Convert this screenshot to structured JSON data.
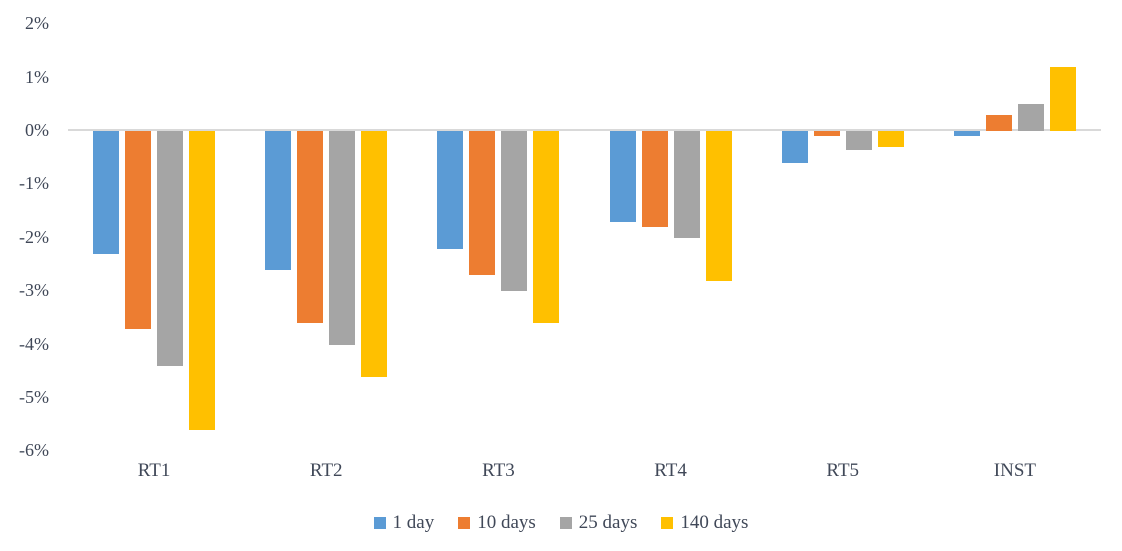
{
  "chart_data": {
    "type": "bar",
    "title": "",
    "xlabel": "",
    "ylabel": "",
    "categories": [
      "RT1",
      "RT2",
      "RT3",
      "RT4",
      "RT5",
      "INST"
    ],
    "series": [
      {
        "name": "1 day",
        "color": "#5B9BD5",
        "values": [
          -2.3,
          -2.6,
          -2.2,
          -1.7,
          -0.6,
          -0.1
        ]
      },
      {
        "name": "10 days",
        "color": "#ED7D31",
        "values": [
          -3.7,
          -3.6,
          -2.7,
          -1.8,
          -0.1,
          0.3
        ]
      },
      {
        "name": "25 days",
        "color": "#A5A5A5",
        "values": [
          -4.4,
          -4.0,
          -3.0,
          -2.0,
          -0.35,
          0.5
        ]
      },
      {
        "name": "140 days",
        "color": "#FFC000",
        "values": [
          -5.6,
          -4.6,
          -3.6,
          -2.8,
          -0.3,
          1.2
        ]
      }
    ],
    "ylim": [
      -6,
      2
    ],
    "yticks": [
      {
        "value": 2,
        "label": "2%"
      },
      {
        "value": 1,
        "label": "1%"
      },
      {
        "value": 0,
        "label": "0%"
      },
      {
        "value": -1,
        "label": "-1%"
      },
      {
        "value": -2,
        "label": "-2%"
      },
      {
        "value": -3,
        "label": "-3%"
      },
      {
        "value": -4,
        "label": "-4%"
      },
      {
        "value": -5,
        "label": "-5%"
      },
      {
        "value": -6,
        "label": "-6%"
      }
    ],
    "grid": false,
    "legend_position": "bottom",
    "colors": {
      "axis_line": "#d9d9d9",
      "text": "#404858",
      "background": "#ffffff"
    }
  }
}
